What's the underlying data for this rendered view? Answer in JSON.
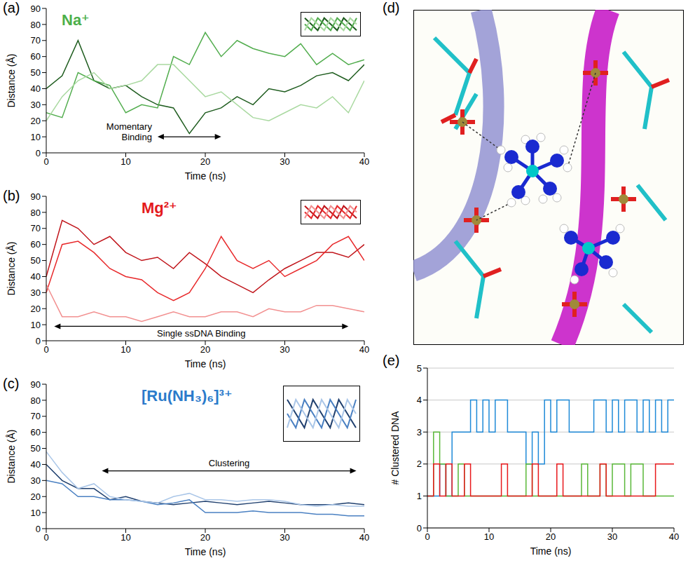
{
  "chart_data": [
    {
      "panel": "(a)",
      "type": "line",
      "title": "Na⁺",
      "color": "#4daf4a",
      "xlabel": "Time (ns)",
      "ylabel": "Distance (Å)",
      "line_style": "solid",
      "marker": "none",
      "x": [
        0,
        2,
        4,
        6,
        8,
        10,
        12,
        14,
        16,
        18,
        20,
        22,
        24,
        26,
        28,
        30,
        32,
        34,
        36,
        38,
        40
      ],
      "xlim": [
        0,
        40
      ],
      "xticks": [
        0,
        10,
        20,
        30,
        40
      ],
      "ylim": [
        0,
        90
      ],
      "yticks": [
        0,
        10,
        20,
        30,
        40,
        50,
        60,
        70,
        80,
        90
      ],
      "series": [
        {
          "color": "#1e5c1e",
          "values": [
            40,
            48,
            70,
            45,
            40,
            42,
            35,
            30,
            28,
            12,
            25,
            28,
            35,
            30,
            40,
            38,
            42,
            48,
            50,
            45,
            55
          ]
        },
        {
          "color": "#52ad4e",
          "values": [
            25,
            22,
            50,
            45,
            42,
            25,
            30,
            28,
            60,
            55,
            75,
            60,
            70,
            65,
            62,
            60,
            68,
            55,
            62,
            55,
            58
          ]
        },
        {
          "color": "#a9d9a0",
          "values": [
            20,
            35,
            45,
            50,
            40,
            42,
            45,
            55,
            55,
            45,
            35,
            38,
            30,
            22,
            20,
            25,
            30,
            28,
            35,
            25,
            45
          ]
        }
      ],
      "annotations": [
        {
          "text": "Momentary Binding",
          "x": [
            14,
            22
          ],
          "y": 10
        }
      ]
    },
    {
      "panel": "(b)",
      "type": "line",
      "title": "Mg²⁺",
      "color": "#e41a1c",
      "xlabel": "Time (ns)",
      "ylabel": "Distance (Å)",
      "line_style": "solid",
      "marker": "none",
      "x": [
        0,
        2,
        4,
        6,
        8,
        10,
        12,
        14,
        16,
        18,
        20,
        22,
        24,
        26,
        28,
        30,
        32,
        34,
        36,
        38,
        40
      ],
      "xlim": [
        0,
        40
      ],
      "xticks": [
        0,
        10,
        20,
        30,
        40
      ],
      "ylim": [
        0,
        90
      ],
      "yticks": [
        0,
        10,
        20,
        30,
        40,
        50,
        60,
        70,
        80,
        90
      ],
      "series": [
        {
          "color": "#c0141a",
          "values": [
            40,
            75,
            70,
            60,
            65,
            55,
            50,
            52,
            45,
            55,
            48,
            40,
            35,
            30,
            38,
            45,
            50,
            55,
            55,
            52,
            60
          ]
        },
        {
          "color": "#e8292b",
          "values": [
            30,
            60,
            62,
            55,
            45,
            40,
            38,
            30,
            25,
            30,
            45,
            65,
            50,
            45,
            50,
            40,
            45,
            50,
            60,
            65,
            50
          ]
        },
        {
          "color": "#f29090",
          "values": [
            35,
            15,
            15,
            18,
            15,
            15,
            12,
            15,
            18,
            15,
            15,
            18,
            18,
            15,
            20,
            18,
            18,
            22,
            22,
            20,
            18
          ]
        }
      ],
      "annotations": [
        {
          "text": "Single ssDNA Binding",
          "x": [
            1,
            38
          ],
          "y": 9
        }
      ]
    },
    {
      "panel": "(c)",
      "type": "line",
      "title": "[Ru(NH₃)₆]³⁺",
      "color": "#2b7bcb",
      "xlabel": "Time (ns)",
      "ylabel": "Distance (Å)",
      "line_style": "solid",
      "marker": "none",
      "x": [
        0,
        2,
        4,
        6,
        8,
        10,
        12,
        14,
        16,
        18,
        20,
        22,
        24,
        26,
        28,
        30,
        32,
        34,
        36,
        38,
        40
      ],
      "xlim": [
        0,
        40
      ],
      "xticks": [
        0,
        10,
        20,
        30,
        40
      ],
      "ylim": [
        0,
        90
      ],
      "yticks": [
        0,
        10,
        20,
        30,
        40,
        50,
        60,
        70,
        80,
        90
      ],
      "series": [
        {
          "color": "#1f3f6e",
          "values": [
            40,
            30,
            25,
            25,
            18,
            20,
            17,
            16,
            15,
            16,
            17,
            16,
            15,
            16,
            17,
            16,
            15,
            15,
            15,
            16,
            15
          ]
        },
        {
          "color": "#4a80c2",
          "values": [
            30,
            28,
            20,
            20,
            18,
            18,
            17,
            15,
            16,
            18,
            10,
            10,
            10,
            11,
            10,
            10,
            10,
            9,
            9,
            8,
            8
          ]
        },
        {
          "color": "#aac6e8",
          "values": [
            48,
            35,
            25,
            28,
            20,
            18,
            17,
            16,
            20,
            22,
            18,
            18,
            17,
            18,
            18,
            17,
            15,
            14,
            15,
            14,
            14
          ]
        }
      ],
      "annotations": [
        {
          "text": "Clustering",
          "x": [
            7,
            39
          ],
          "y": 36
        }
      ]
    },
    {
      "panel": "(d)",
      "type": "image"
    },
    {
      "panel": "(e)",
      "type": "line",
      "xlabel": "Time (ns)",
      "ylabel": "# Clustered DNA",
      "line_style": "step",
      "marker": "none",
      "grid": true,
      "x": [
        0,
        1,
        2,
        3,
        4,
        5,
        6,
        7,
        8,
        9,
        10,
        11,
        12,
        13,
        14,
        15,
        16,
        17,
        18,
        19,
        20,
        21,
        22,
        23,
        24,
        25,
        26,
        27,
        28,
        29,
        30,
        31,
        32,
        33,
        34,
        35,
        36,
        37,
        38,
        39,
        40
      ],
      "xlim": [
        0,
        40
      ],
      "xticks": [
        0,
        10,
        20,
        30,
        40
      ],
      "ylim": [
        0,
        5
      ],
      "yticks": [
        0,
        1,
        2,
        3,
        4,
        5
      ],
      "series": [
        {
          "color": "#1f8ad8",
          "values": [
            1,
            1,
            2,
            1,
            3,
            3,
            3,
            4,
            3,
            4,
            3,
            4,
            4,
            3,
            3,
            3,
            2,
            3,
            2,
            4,
            3,
            4,
            4,
            3,
            3,
            3,
            3,
            4,
            4,
            3,
            4,
            3,
            4,
            4,
            3,
            4,
            3,
            4,
            3,
            4,
            4
          ]
        },
        {
          "color": "#5ab839",
          "values": [
            1,
            3,
            2,
            1,
            1,
            2,
            1,
            1,
            1,
            1,
            1,
            1,
            1,
            1,
            1,
            1,
            2,
            1,
            1,
            1,
            1,
            1,
            1,
            1,
            1,
            2,
            1,
            1,
            2,
            1,
            2,
            2,
            1,
            2,
            2,
            1,
            1,
            1,
            1,
            1,
            1
          ]
        },
        {
          "color": "#e8191c",
          "values": [
            1,
            2,
            1,
            2,
            1,
            1,
            2,
            1,
            1,
            1,
            1,
            1,
            2,
            1,
            1,
            1,
            1,
            2,
            1,
            1,
            1,
            2,
            1,
            1,
            1,
            1,
            1,
            1,
            2,
            1,
            1,
            1,
            1,
            1,
            1,
            1,
            1,
            2,
            2,
            2,
            2
          ]
        }
      ]
    }
  ]
}
